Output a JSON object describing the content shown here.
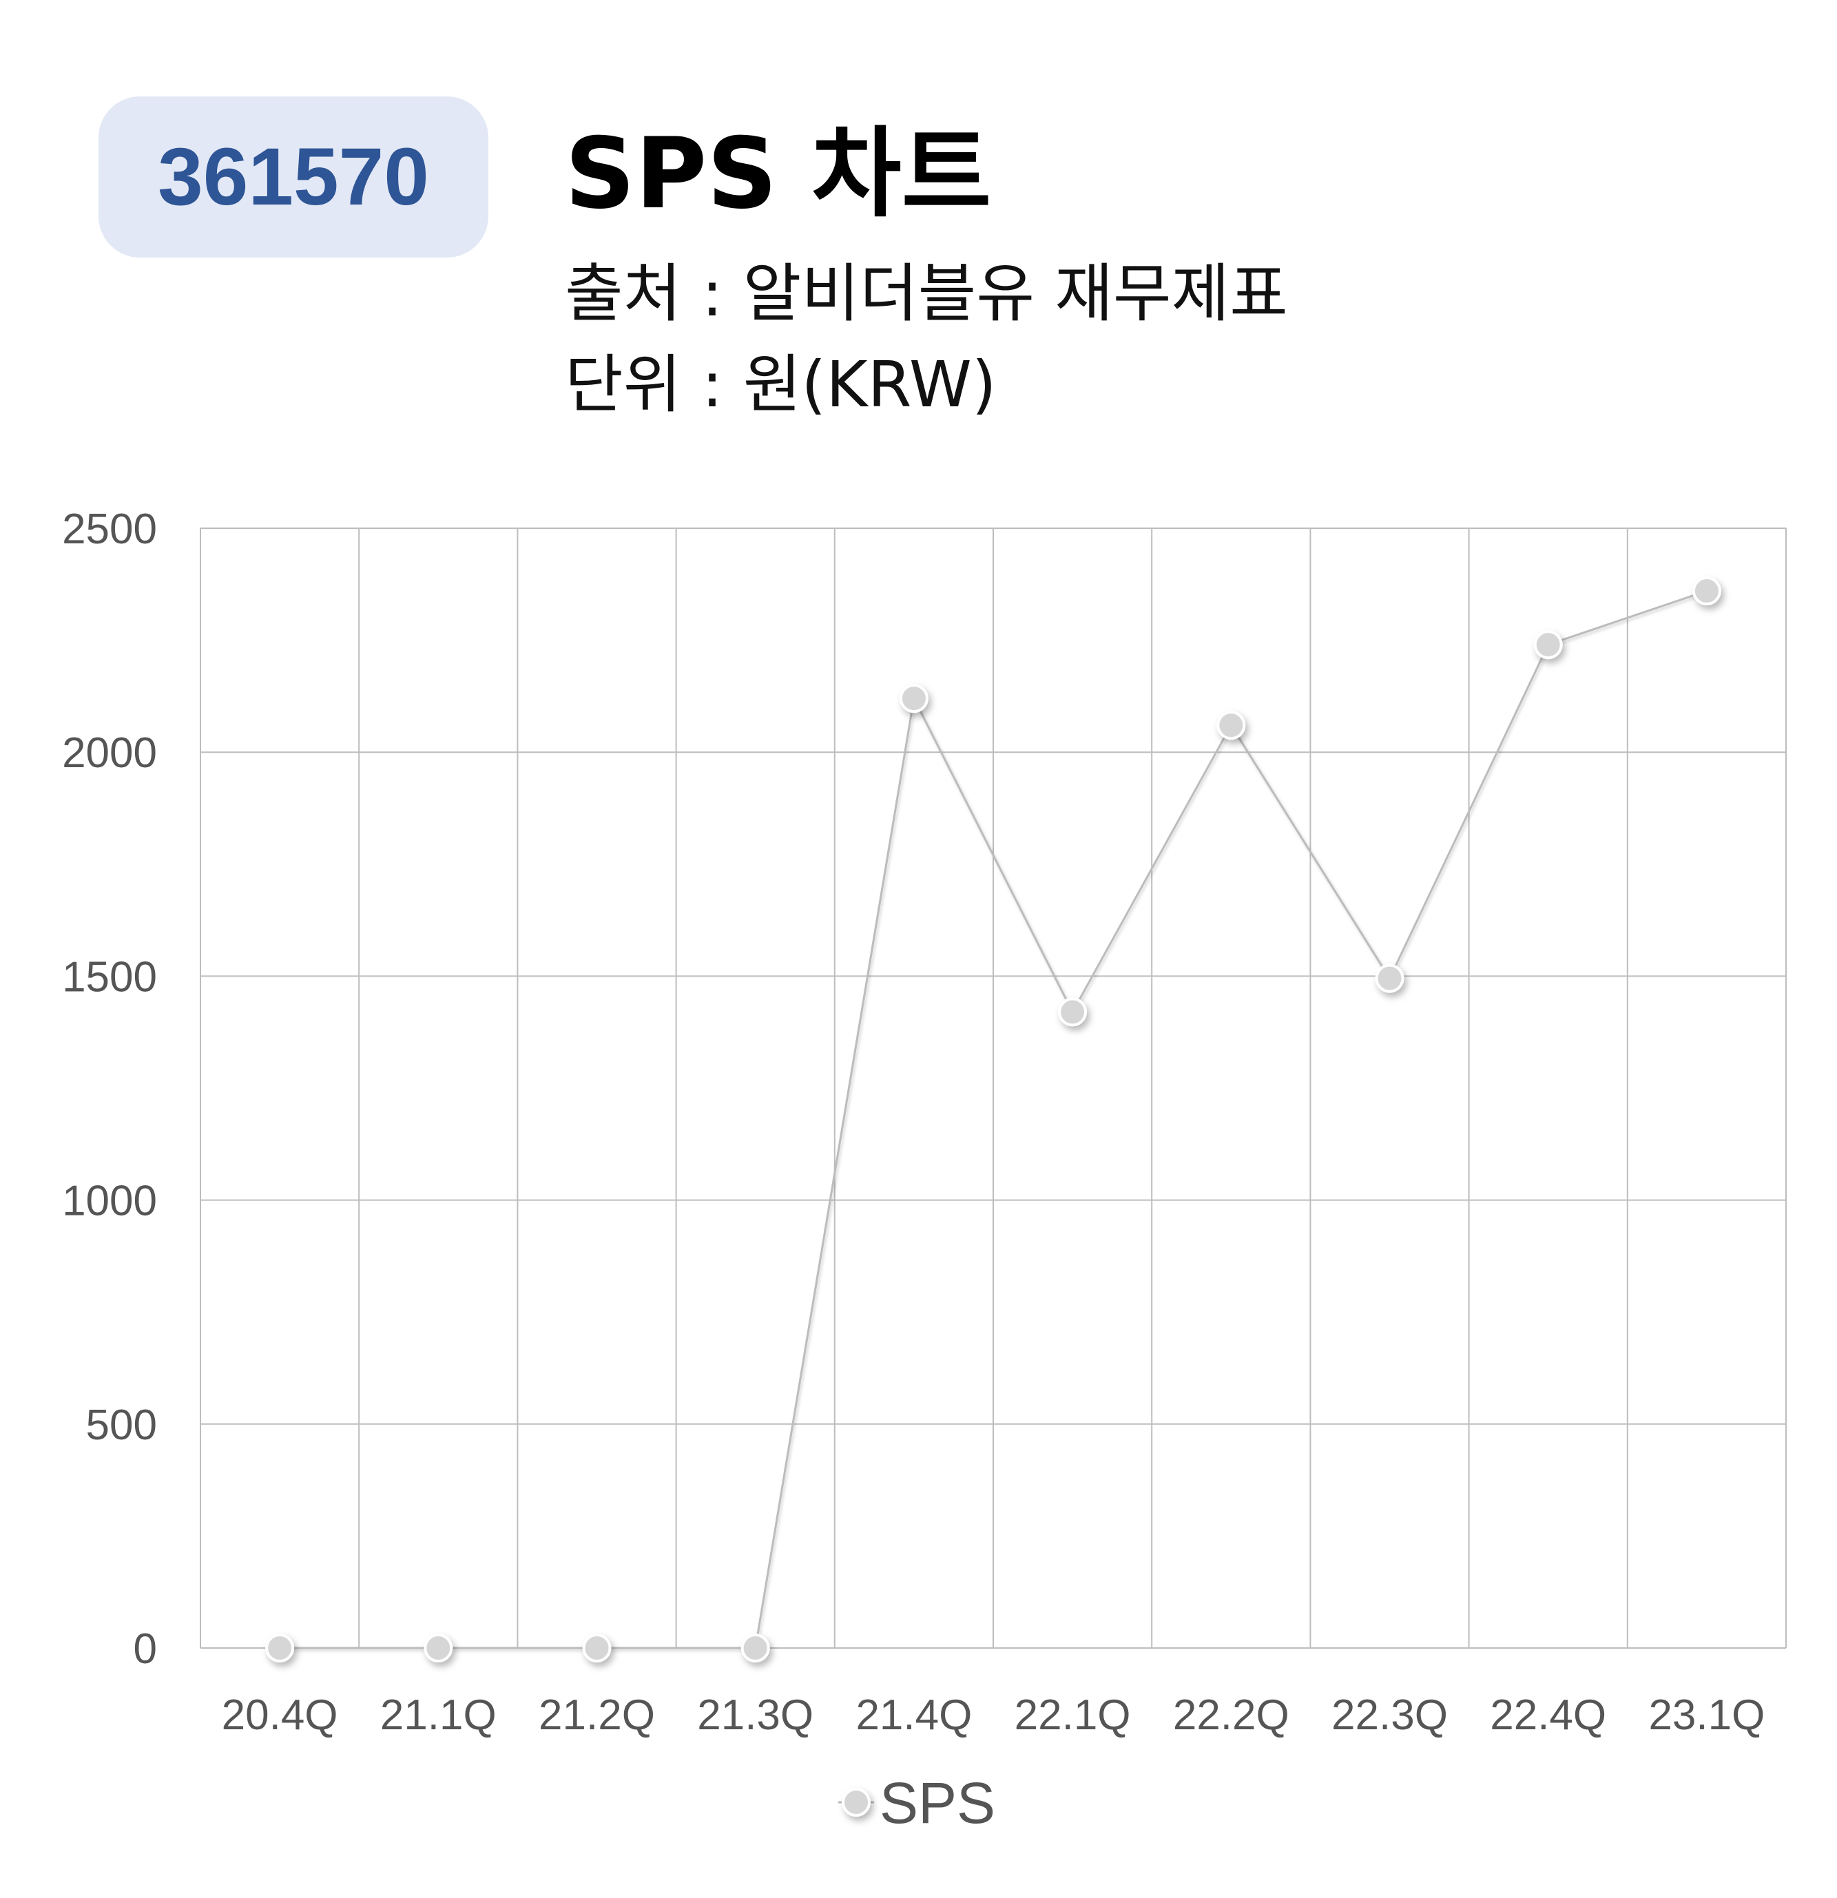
{
  "header": {
    "ticker": "361570",
    "title": "SPS 차트",
    "source": "출처 : 알비더블유 재무제표",
    "unit": "단위 : 원(KRW)"
  },
  "chart_data": {
    "type": "line",
    "categories": [
      "20.4Q",
      "21.1Q",
      "21.2Q",
      "21.3Q",
      "21.4Q",
      "22.1Q",
      "22.2Q",
      "22.3Q",
      "22.4Q",
      "23.1Q"
    ],
    "series": [
      {
        "name": "SPS",
        "values": [
          0,
          0,
          0,
          0,
          2120,
          1420,
          2060,
          1495,
          2240,
          2360
        ],
        "color": "#d4d4d4"
      }
    ],
    "ylim": [
      0,
      2500
    ],
    "yticks": [
      0,
      500,
      1000,
      1500,
      2000,
      2500
    ],
    "grid": true,
    "legend": "bottom-center",
    "colors": {
      "grid": "#bdbdbd",
      "line": "#bcbcbc",
      "marker": "#d6d6d6",
      "tick_text": "#555555"
    }
  }
}
